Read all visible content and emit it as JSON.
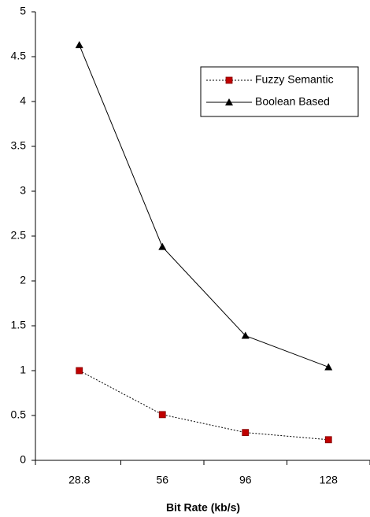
{
  "chart_data": {
    "type": "line",
    "x_label": "Bit Rate (kb/s)",
    "categories": [
      "28.8",
      "56",
      "96",
      "128"
    ],
    "series": [
      {
        "name": "Fuzzy Semantic",
        "color": "#c00000",
        "line_style": "dotted",
        "marker": "square",
        "values": [
          1.0,
          0.51,
          0.31,
          0.23
        ]
      },
      {
        "name": "Boolean Based",
        "color": "#000000",
        "line_style": "solid",
        "marker": "triangle",
        "values": [
          4.63,
          2.38,
          1.39,
          1.04
        ]
      }
    ],
    "ylim": [
      0,
      5
    ],
    "yticks": [
      0,
      0.5,
      1,
      1.5,
      2,
      2.5,
      3,
      3.5,
      4,
      4.5,
      5
    ]
  }
}
